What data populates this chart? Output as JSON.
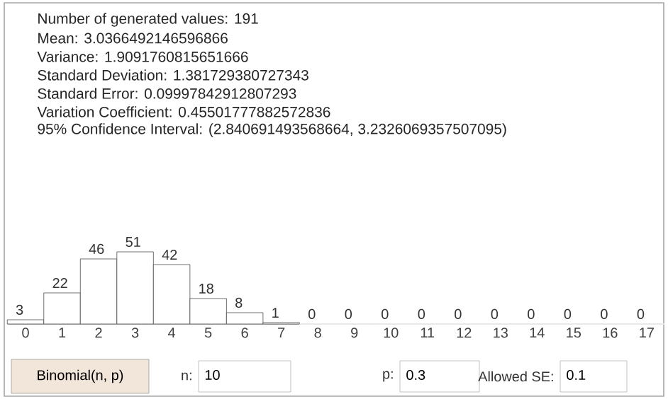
{
  "chart_data": {
    "type": "bar",
    "categories": [
      "0",
      "1",
      "2",
      "3",
      "4",
      "5",
      "6",
      "7",
      "8",
      "9",
      "10",
      "11",
      "12",
      "13",
      "14",
      "15",
      "16",
      "17"
    ],
    "values": [
      3,
      22,
      46,
      51,
      42,
      18,
      8,
      1,
      0,
      0,
      0,
      0,
      0,
      0,
      0,
      0,
      0,
      0
    ],
    "color": "#ffffff",
    "data_labels": true,
    "annotations": [
      "Number of generated values: 191",
      "Mean: 3.0366492146596866",
      "Variance: 1.9091760815651666",
      "Standard Deviation: 1.381729380727343",
      "Standard Error: 0.09997842912807293",
      "Variation Coefficient: 0.45501777882572836",
      "95% Confidence Interval: (2.840691493568664, 3.2326069357507095)",
      "Binomial(n, p)",
      "n:",
      "10",
      "p:",
      "0.3",
      "Allowed SE:",
      "0.1"
    ]
  }
}
